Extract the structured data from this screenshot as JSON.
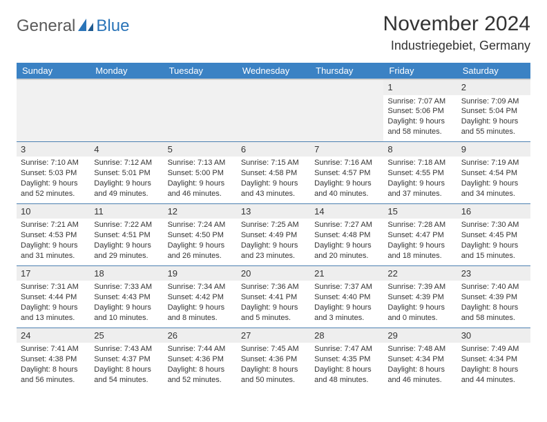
{
  "logo": {
    "part1": "General",
    "part2": "Blue"
  },
  "title": "November 2024",
  "location": "Industriegebiet, Germany",
  "colors": {
    "header_bg": "#3b82c4",
    "header_text": "#ffffff",
    "row_border": "#4a7fb0",
    "daynum_bg": "#eeeeee",
    "logo_accent": "#2a74b8",
    "logo_gray": "#5a5a5a"
  },
  "day_headers": [
    "Sunday",
    "Monday",
    "Tuesday",
    "Wednesday",
    "Thursday",
    "Friday",
    "Saturday"
  ],
  "weeks": [
    [
      null,
      null,
      null,
      null,
      null,
      {
        "n": "1",
        "sunrise": "Sunrise: 7:07 AM",
        "sunset": "Sunset: 5:06 PM",
        "daylight": "Daylight: 9 hours and 58 minutes."
      },
      {
        "n": "2",
        "sunrise": "Sunrise: 7:09 AM",
        "sunset": "Sunset: 5:04 PM",
        "daylight": "Daylight: 9 hours and 55 minutes."
      }
    ],
    [
      {
        "n": "3",
        "sunrise": "Sunrise: 7:10 AM",
        "sunset": "Sunset: 5:03 PM",
        "daylight": "Daylight: 9 hours and 52 minutes."
      },
      {
        "n": "4",
        "sunrise": "Sunrise: 7:12 AM",
        "sunset": "Sunset: 5:01 PM",
        "daylight": "Daylight: 9 hours and 49 minutes."
      },
      {
        "n": "5",
        "sunrise": "Sunrise: 7:13 AM",
        "sunset": "Sunset: 5:00 PM",
        "daylight": "Daylight: 9 hours and 46 minutes."
      },
      {
        "n": "6",
        "sunrise": "Sunrise: 7:15 AM",
        "sunset": "Sunset: 4:58 PM",
        "daylight": "Daylight: 9 hours and 43 minutes."
      },
      {
        "n": "7",
        "sunrise": "Sunrise: 7:16 AM",
        "sunset": "Sunset: 4:57 PM",
        "daylight": "Daylight: 9 hours and 40 minutes."
      },
      {
        "n": "8",
        "sunrise": "Sunrise: 7:18 AM",
        "sunset": "Sunset: 4:55 PM",
        "daylight": "Daylight: 9 hours and 37 minutes."
      },
      {
        "n": "9",
        "sunrise": "Sunrise: 7:19 AM",
        "sunset": "Sunset: 4:54 PM",
        "daylight": "Daylight: 9 hours and 34 minutes."
      }
    ],
    [
      {
        "n": "10",
        "sunrise": "Sunrise: 7:21 AM",
        "sunset": "Sunset: 4:53 PM",
        "daylight": "Daylight: 9 hours and 31 minutes."
      },
      {
        "n": "11",
        "sunrise": "Sunrise: 7:22 AM",
        "sunset": "Sunset: 4:51 PM",
        "daylight": "Daylight: 9 hours and 29 minutes."
      },
      {
        "n": "12",
        "sunrise": "Sunrise: 7:24 AM",
        "sunset": "Sunset: 4:50 PM",
        "daylight": "Daylight: 9 hours and 26 minutes."
      },
      {
        "n": "13",
        "sunrise": "Sunrise: 7:25 AM",
        "sunset": "Sunset: 4:49 PM",
        "daylight": "Daylight: 9 hours and 23 minutes."
      },
      {
        "n": "14",
        "sunrise": "Sunrise: 7:27 AM",
        "sunset": "Sunset: 4:48 PM",
        "daylight": "Daylight: 9 hours and 20 minutes."
      },
      {
        "n": "15",
        "sunrise": "Sunrise: 7:28 AM",
        "sunset": "Sunset: 4:47 PM",
        "daylight": "Daylight: 9 hours and 18 minutes."
      },
      {
        "n": "16",
        "sunrise": "Sunrise: 7:30 AM",
        "sunset": "Sunset: 4:45 PM",
        "daylight": "Daylight: 9 hours and 15 minutes."
      }
    ],
    [
      {
        "n": "17",
        "sunrise": "Sunrise: 7:31 AM",
        "sunset": "Sunset: 4:44 PM",
        "daylight": "Daylight: 9 hours and 13 minutes."
      },
      {
        "n": "18",
        "sunrise": "Sunrise: 7:33 AM",
        "sunset": "Sunset: 4:43 PM",
        "daylight": "Daylight: 9 hours and 10 minutes."
      },
      {
        "n": "19",
        "sunrise": "Sunrise: 7:34 AM",
        "sunset": "Sunset: 4:42 PM",
        "daylight": "Daylight: 9 hours and 8 minutes."
      },
      {
        "n": "20",
        "sunrise": "Sunrise: 7:36 AM",
        "sunset": "Sunset: 4:41 PM",
        "daylight": "Daylight: 9 hours and 5 minutes."
      },
      {
        "n": "21",
        "sunrise": "Sunrise: 7:37 AM",
        "sunset": "Sunset: 4:40 PM",
        "daylight": "Daylight: 9 hours and 3 minutes."
      },
      {
        "n": "22",
        "sunrise": "Sunrise: 7:39 AM",
        "sunset": "Sunset: 4:39 PM",
        "daylight": "Daylight: 9 hours and 0 minutes."
      },
      {
        "n": "23",
        "sunrise": "Sunrise: 7:40 AM",
        "sunset": "Sunset: 4:39 PM",
        "daylight": "Daylight: 8 hours and 58 minutes."
      }
    ],
    [
      {
        "n": "24",
        "sunrise": "Sunrise: 7:41 AM",
        "sunset": "Sunset: 4:38 PM",
        "daylight": "Daylight: 8 hours and 56 minutes."
      },
      {
        "n": "25",
        "sunrise": "Sunrise: 7:43 AM",
        "sunset": "Sunset: 4:37 PM",
        "daylight": "Daylight: 8 hours and 54 minutes."
      },
      {
        "n": "26",
        "sunrise": "Sunrise: 7:44 AM",
        "sunset": "Sunset: 4:36 PM",
        "daylight": "Daylight: 8 hours and 52 minutes."
      },
      {
        "n": "27",
        "sunrise": "Sunrise: 7:45 AM",
        "sunset": "Sunset: 4:36 PM",
        "daylight": "Daylight: 8 hours and 50 minutes."
      },
      {
        "n": "28",
        "sunrise": "Sunrise: 7:47 AM",
        "sunset": "Sunset: 4:35 PM",
        "daylight": "Daylight: 8 hours and 48 minutes."
      },
      {
        "n": "29",
        "sunrise": "Sunrise: 7:48 AM",
        "sunset": "Sunset: 4:34 PM",
        "daylight": "Daylight: 8 hours and 46 minutes."
      },
      {
        "n": "30",
        "sunrise": "Sunrise: 7:49 AM",
        "sunset": "Sunset: 4:34 PM",
        "daylight": "Daylight: 8 hours and 44 minutes."
      }
    ]
  ]
}
